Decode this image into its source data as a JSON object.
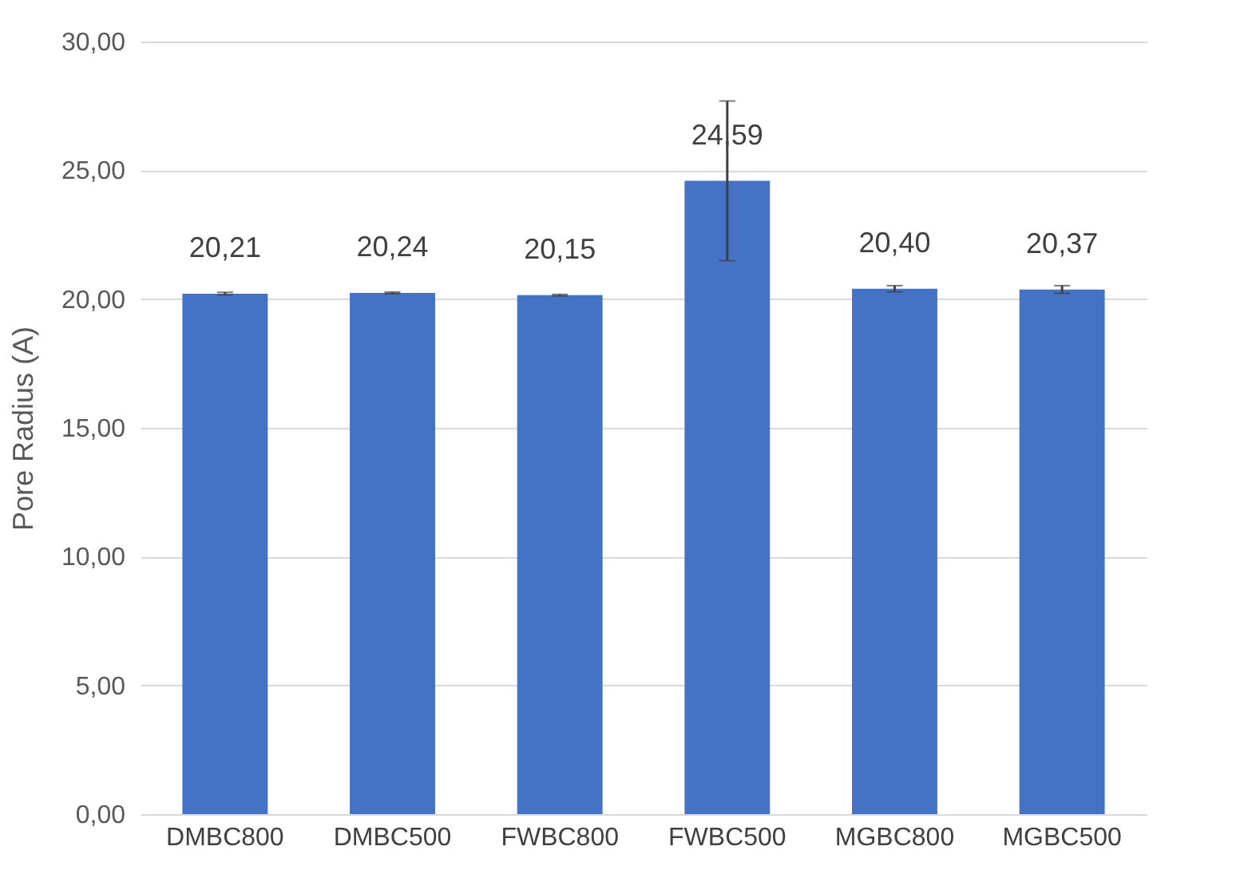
{
  "chart_data": {
    "type": "bar",
    "ylabel": "Pore Radius (A)",
    "categories": [
      "DMBC800",
      "DMBC500",
      "FWBC800",
      "FWBC500",
      "MGBC800",
      "MGBC500"
    ],
    "series": [
      {
        "color": "#4472c4",
        "values": [
          20.21,
          20.24,
          20.15,
          24.59,
          20.4,
          20.37
        ],
        "errors": [
          0.05,
          0.03,
          0.03,
          3.1,
          0.12,
          0.15
        ],
        "value_labels": [
          "20,21",
          "20,24",
          "20,15",
          "24,59",
          "20,40",
          "20,37"
        ]
      }
    ],
    "ylim": [
      0,
      30
    ],
    "yticks": [
      {
        "value": 0,
        "label": "0,00"
      },
      {
        "value": 5,
        "label": "5,00"
      },
      {
        "value": 10,
        "label": "10,00"
      },
      {
        "value": 15,
        "label": "15,00"
      },
      {
        "value": 20,
        "label": "20,00"
      },
      {
        "value": 25,
        "label": "25,00"
      },
      {
        "value": 30,
        "label": "30,00"
      }
    ],
    "grid": "y"
  }
}
